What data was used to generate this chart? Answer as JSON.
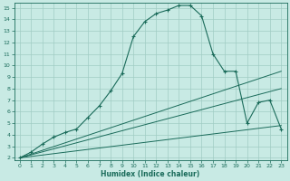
{
  "xlabel": "Humidex (Indice chaleur)",
  "xlim": [
    -0.5,
    23.5
  ],
  "ylim": [
    1.8,
    15.4
  ],
  "xticks": [
    0,
    1,
    2,
    3,
    4,
    5,
    6,
    7,
    8,
    9,
    10,
    11,
    12,
    13,
    14,
    15,
    16,
    17,
    18,
    19,
    20,
    21,
    22,
    23
  ],
  "yticks": [
    2,
    3,
    4,
    5,
    6,
    7,
    8,
    9,
    10,
    11,
    12,
    13,
    14,
    15
  ],
  "bg_color": "#c8eae4",
  "grid_color": "#a0ccc4",
  "line_color": "#1a6b5a",
  "line1_x": [
    0,
    1,
    2,
    3,
    4,
    5,
    6,
    7,
    8,
    9,
    10,
    11,
    12,
    13,
    14,
    15,
    16,
    17,
    18,
    19,
    20,
    21,
    22,
    23
  ],
  "line1_y": [
    2.0,
    2.5,
    3.2,
    3.8,
    4.2,
    4.5,
    5.5,
    6.5,
    7.8,
    9.3,
    12.5,
    13.8,
    14.5,
    14.8,
    15.2,
    15.2,
    14.3,
    11.0,
    9.5,
    9.5,
    5.0,
    6.8,
    7.0,
    4.5
  ],
  "line2_x": [
    0,
    23
  ],
  "line2_y": [
    2.0,
    9.5
  ],
  "line3_x": [
    0,
    23
  ],
  "line3_y": [
    2.0,
    8.0
  ],
  "line4_x": [
    0,
    23
  ],
  "line4_y": [
    2.0,
    4.8
  ]
}
